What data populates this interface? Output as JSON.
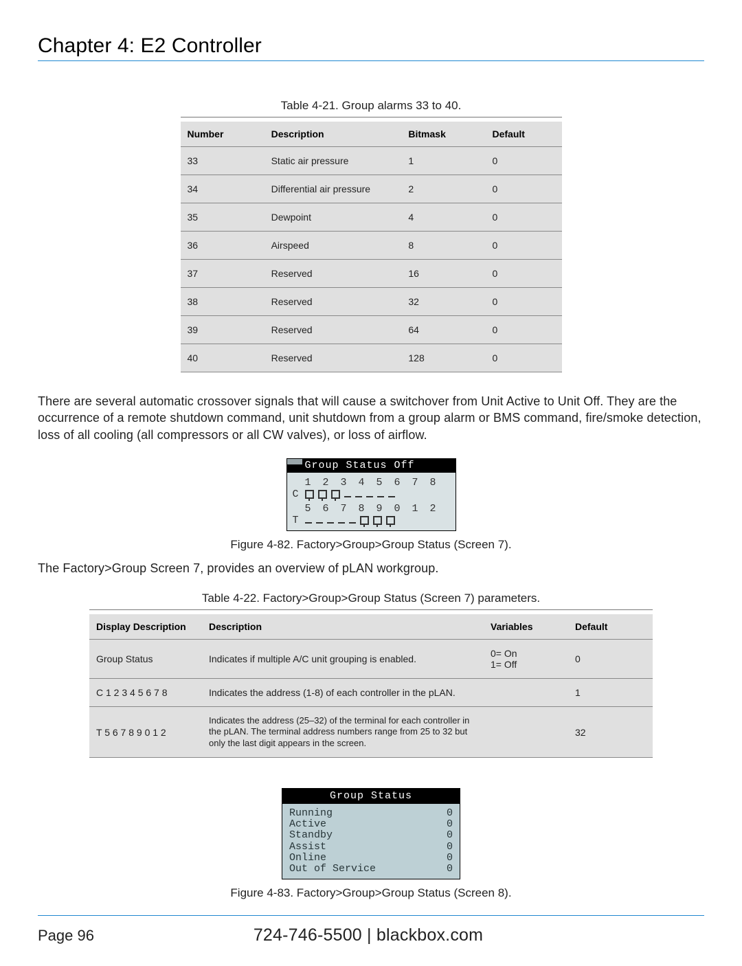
{
  "header": {
    "chapter_title": "Chapter 4: E2 Controller"
  },
  "table1": {
    "caption": "Table 4-21. Group alarms 33 to 40.",
    "columns": [
      "Number",
      "Description",
      "Bitmask",
      "Default"
    ],
    "rows": [
      [
        "33",
        "Static air pressure",
        "1",
        "0"
      ],
      [
        "34",
        "Differential air pressure",
        "2",
        "0"
      ],
      [
        "35",
        "Dewpoint",
        "4",
        "0"
      ],
      [
        "36",
        "Airspeed",
        "8",
        "0"
      ],
      [
        "37",
        "Reserved",
        "16",
        "0"
      ],
      [
        "38",
        "Reserved",
        "32",
        "0"
      ],
      [
        "39",
        "Reserved",
        "64",
        "0"
      ],
      [
        "40",
        "Reserved",
        "128",
        "0"
      ]
    ]
  },
  "para1": "There are several automatic crossover signals that will cause a switchover from Unit Active to Unit Off. They are the occurrence of a remote shutdown command, unit shutdown from a group alarm or BMS command, fire/smoke detection, loss of all cooling (all compressors or all CW valves), or loss of airflow.",
  "lcd1": {
    "title": "Group Status  Off",
    "row1_nums": "1 2 3 4 5 6 7 8",
    "row1_label": "C",
    "row1_flags": [
      1,
      1,
      1,
      0,
      0,
      0,
      0,
      0
    ],
    "row2_nums": "5 6 7 8 9 0 1 2",
    "row2_label": "T",
    "row2_flags": [
      0,
      0,
      0,
      0,
      0,
      1,
      1,
      1
    ]
  },
  "fig1_caption": "Figure 4-82. Factory>Group>Group Status (Screen 7).",
  "para2": "The  Factory>Group Screen 7, provides an overview of pLAN workgroup.",
  "table2": {
    "caption": "Table 4-22. Factory>Group>Group Status (Screen 7) parameters.",
    "columns": [
      "Display Description",
      "Description",
      "Variables",
      "Default"
    ],
    "rows": [
      {
        "c0": "Group Status",
        "c1": "Indicates if multiple A/C unit grouping is enabled.",
        "c2a": "0= On",
        "c2b": "1= Off",
        "c3": "0"
      },
      {
        "c0": "C 1 2 3 4 5 6 7 8",
        "c1": "Indicates the address (1-8) of each controller in the pLAN.",
        "c2a": "",
        "c2b": "",
        "c3": "1"
      },
      {
        "c0": "T 5 6 7 8 9 0 1 2",
        "c1": "Indicates the address (25–32) of the terminal for each controller in the pLAN. The terminal address numbers range from 25 to 32 but only the last digit appears in the screen.",
        "c2a": "",
        "c2b": "",
        "c3": "32"
      }
    ]
  },
  "lcd2": {
    "title": "Group Status",
    "rows": [
      [
        "Running",
        "0"
      ],
      [
        "Active",
        "0"
      ],
      [
        "Standby",
        "0"
      ],
      [
        "Assist",
        "0"
      ],
      [
        "Online",
        "0"
      ],
      [
        "Out of Service",
        "0"
      ]
    ]
  },
  "fig2_caption": "Figure 4-83. Factory>Group>Group Status (Screen 8).",
  "footer": {
    "page": "Page 96",
    "phone": "724-746-5500",
    "sep": "   |   ",
    "site": "blackbox.com"
  }
}
